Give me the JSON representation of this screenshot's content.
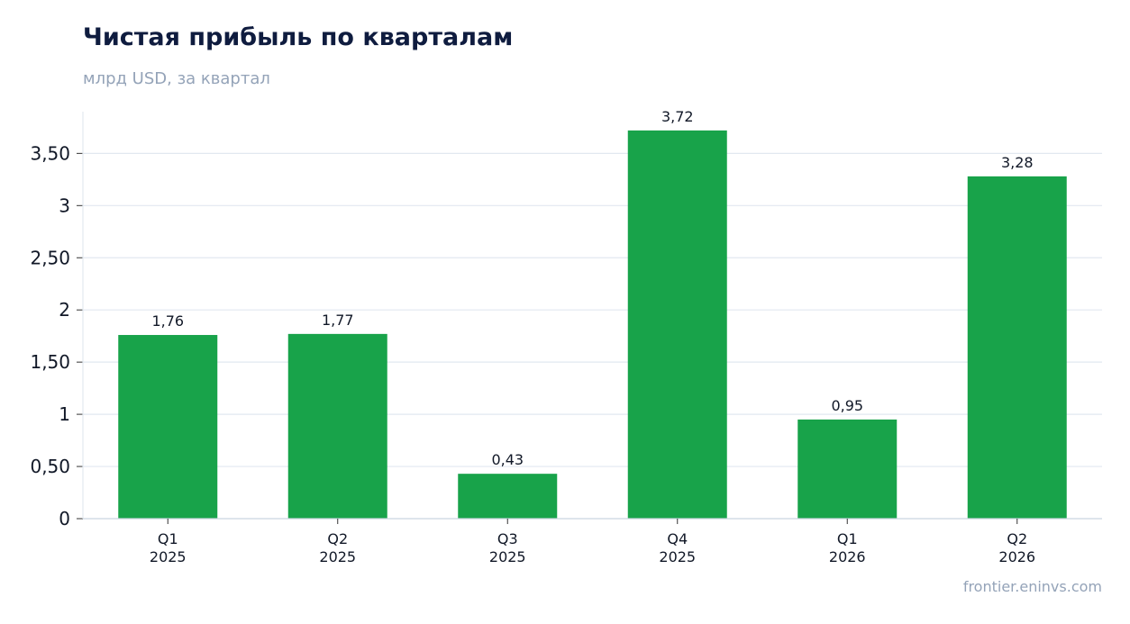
{
  "header": {
    "title": "Чистая прибыль по кварталам",
    "subtitle": "млрд USD, за квартал"
  },
  "footer": {
    "source": "frontier.eninvs.com"
  },
  "colors": {
    "bar": "#18a34a",
    "grid": "#e2e8f0",
    "axis": "#cbd5e1",
    "tick_text": "#111827",
    "title": "#0f1c3f",
    "muted": "#94a3b8"
  },
  "chart_data": {
    "type": "bar",
    "title": "Чистая прибыль по кварталам",
    "subtitle": "млрд USD, за квартал",
    "categories": [
      [
        "Q1",
        "2025"
      ],
      [
        "Q2",
        "2025"
      ],
      [
        "Q3",
        "2025"
      ],
      [
        "Q4",
        "2025"
      ],
      [
        "Q1",
        "2026"
      ],
      [
        "Q2",
        "2026"
      ]
    ],
    "values": [
      1.76,
      1.77,
      0.43,
      3.72,
      0.95,
      3.28
    ],
    "value_labels": [
      "1,76",
      "1,77",
      "0,43",
      "3,72",
      "0,95",
      "3,28"
    ],
    "yticks": [
      0,
      0.5,
      1,
      1.5,
      2,
      2.5,
      3,
      3.5
    ],
    "ytick_labels": [
      "0",
      "0,50",
      "1",
      "1,50",
      "2",
      "2,50",
      "3",
      "3,50"
    ],
    "ylim": [
      0,
      3.9
    ],
    "grid": true,
    "legend": "none"
  }
}
